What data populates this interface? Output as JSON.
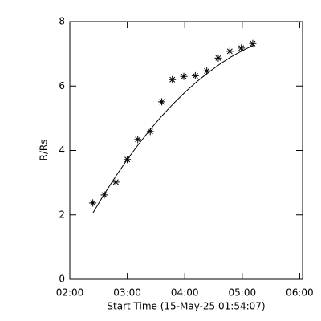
{
  "chart_data": {
    "type": "scatter",
    "xlabel": "Start Time (15-May-25 01:54:07)",
    "ylabel": "R/Rs",
    "xlim": [
      120,
      363
    ],
    "ylim": [
      0,
      8
    ],
    "xticks": [
      {
        "value": 120,
        "label": "02:00"
      },
      {
        "value": 180,
        "label": "03:00"
      },
      {
        "value": 240,
        "label": "04:00"
      },
      {
        "value": 300,
        "label": "05:00"
      },
      {
        "value": 360,
        "label": "06:00"
      }
    ],
    "yticks": [
      0,
      2,
      4,
      6,
      8
    ],
    "series": [
      {
        "mode": "markers",
        "marker": "asterisk",
        "color": "#000000",
        "x": [
          144,
          156,
          168,
          180,
          191,
          204,
          216,
          227,
          239,
          251,
          263,
          275,
          287,
          299,
          311
        ],
        "values": [
          2.37,
          2.62,
          3.02,
          3.72,
          4.34,
          4.59,
          5.51,
          6.2,
          6.3,
          6.32,
          6.47,
          6.87,
          7.08,
          7.18,
          7.32
        ]
      },
      {
        "mode": "line",
        "color": "#000000",
        "x": [
          144,
          156,
          168,
          180,
          192,
          204,
          216,
          228,
          240,
          252,
          264,
          276,
          288,
          300,
          312
        ],
        "values": [
          2.05,
          2.65,
          3.2,
          3.72,
          4.2,
          4.65,
          5.07,
          5.45,
          5.8,
          6.12,
          6.41,
          6.67,
          6.9,
          7.1,
          7.27
        ]
      }
    ]
  }
}
